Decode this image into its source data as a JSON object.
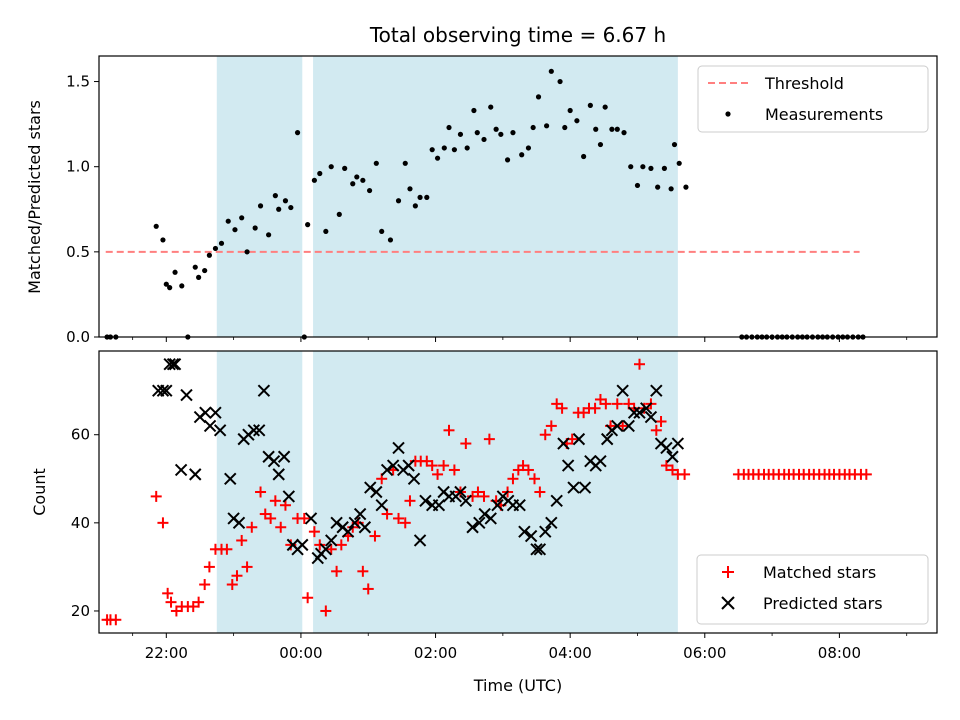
{
  "chart_data": [
    {
      "type": "scatter",
      "title": "Total observing time = 6.67 h",
      "xlabel": "",
      "ylabel": "Matched/Predicted stars",
      "x_ticks": [
        "22:00",
        "00:00",
        "02:00",
        "04:00",
        "06:00",
        "08:00"
      ],
      "xlim": [
        -3.0,
        9.45
      ],
      "ylim": [
        0,
        1.65
      ],
      "y_ticks": [
        0.0,
        0.5,
        1.0,
        1.5
      ],
      "y_tick_labels": [
        "0.0",
        "0.5",
        "1.0",
        "1.5"
      ],
      "grid": false,
      "legend": "top-right",
      "shaded_spans": [
        [
          -1.25,
          0.02
        ],
        [
          0.18,
          5.6
        ]
      ],
      "shade_color": "#add8e6",
      "threshold": {
        "name": "Threshold",
        "y": 0.5,
        "x_range": [
          -2.9,
          8.3
        ],
        "color": "#ff7f7f"
      },
      "series": [
        {
          "name": "Measurements",
          "color": "#000000",
          "x": [
            -2.88,
            -2.83,
            -2.75,
            -2.15,
            -2.05,
            -2.0,
            -1.95,
            -1.87,
            -1.77,
            -1.68,
            -1.57,
            -1.52,
            -1.43,
            -1.36,
            -1.27,
            -1.18,
            -1.08,
            -0.98,
            -0.88,
            -0.8,
            -0.68,
            -0.6,
            -0.48,
            -0.38,
            -0.33,
            -0.23,
            -0.15,
            -0.05,
            0.05,
            0.1,
            0.2,
            0.28,
            0.37,
            0.45,
            0.57,
            0.65,
            0.77,
            0.83,
            0.92,
            1.02,
            1.12,
            1.2,
            1.33,
            1.45,
            1.55,
            1.62,
            1.7,
            1.77,
            1.87,
            1.95,
            2.03,
            2.13,
            2.2,
            2.28,
            2.37,
            2.47,
            2.57,
            2.62,
            2.72,
            2.82,
            2.9,
            2.97,
            3.07,
            3.15,
            3.28,
            3.38,
            3.45,
            3.53,
            3.65,
            3.72,
            3.85,
            3.92,
            4.0,
            4.1,
            4.2,
            4.3,
            4.38,
            4.45,
            4.52,
            4.62,
            4.7,
            4.8,
            4.9,
            5.0,
            5.08,
            5.2,
            5.3,
            5.4,
            5.5,
            5.55,
            5.62,
            5.72,
            6.55,
            6.62,
            6.7,
            6.78,
            6.85,
            6.92,
            7.0,
            7.08,
            7.15,
            7.22,
            7.3,
            7.38,
            7.45,
            7.52,
            7.6,
            7.68,
            7.75,
            7.82,
            7.9,
            7.98,
            8.05,
            8.12,
            8.2,
            8.28,
            8.35
          ],
          "y": [
            0.0,
            0.0,
            0.0,
            0.65,
            0.57,
            0.31,
            0.29,
            0.38,
            0.3,
            0.0,
            0.41,
            0.35,
            0.39,
            0.48,
            0.52,
            0.55,
            0.68,
            0.63,
            0.7,
            0.5,
            0.64,
            0.77,
            0.6,
            0.83,
            0.75,
            0.8,
            0.76,
            1.2,
            0.0,
            0.66,
            0.92,
            0.96,
            0.62,
            1.0,
            0.72,
            0.99,
            0.9,
            0.94,
            0.92,
            0.86,
            1.02,
            0.62,
            0.57,
            0.8,
            1.02,
            0.87,
            0.77,
            0.82,
            0.82,
            1.1,
            1.05,
            1.11,
            1.23,
            1.1,
            1.19,
            1.11,
            1.33,
            1.2,
            1.16,
            1.35,
            1.22,
            1.19,
            1.04,
            1.2,
            1.07,
            1.11,
            1.23,
            1.41,
            1.24,
            1.56,
            1.5,
            1.23,
            1.33,
            1.27,
            1.06,
            1.36,
            1.22,
            1.13,
            1.35,
            1.22,
            1.22,
            1.2,
            1.0,
            0.89,
            1.0,
            0.99,
            0.88,
            0.99,
            0.87,
            1.13,
            1.02,
            0.88,
            0.0,
            0.0,
            0.0,
            0.0,
            0.0,
            0.0,
            0.0,
            0.0,
            0.0,
            0.0,
            0.0,
            0.0,
            0.0,
            0.0,
            0.0,
            0.0,
            0.0,
            0.0,
            0.0,
            0.0,
            0.0,
            0.0,
            0.0,
            0.0,
            0.0
          ]
        }
      ]
    },
    {
      "type": "scatter",
      "title": "",
      "xlabel": "Time (UTC)",
      "ylabel": "Count",
      "x_ticks": [
        "22:00",
        "00:00",
        "02:00",
        "04:00",
        "06:00",
        "08:00"
      ],
      "xlim": [
        -3.0,
        9.45
      ],
      "ylim": [
        15,
        79
      ],
      "y_ticks": [
        20,
        40,
        60
      ],
      "y_tick_labels": [
        "20",
        "40",
        "60"
      ],
      "grid": false,
      "legend": "bottom-right",
      "shaded_spans": [
        [
          -1.25,
          0.02
        ],
        [
          0.18,
          5.6
        ]
      ],
      "shade_color": "#add8e6",
      "series": [
        {
          "name": "Matched stars",
          "marker": "plus",
          "color": "#ff0000",
          "x": [
            -2.88,
            -2.83,
            -2.75,
            -2.15,
            -2.05,
            -1.98,
            -1.93,
            -1.85,
            -1.77,
            -1.68,
            -1.6,
            -1.52,
            -1.43,
            -1.36,
            -1.27,
            -1.18,
            -1.1,
            -1.02,
            -0.95,
            -0.88,
            -0.8,
            -0.73,
            -0.6,
            -0.53,
            -0.45,
            -0.38,
            -0.3,
            -0.23,
            -0.15,
            -0.05,
            0.05,
            0.1,
            0.2,
            0.28,
            0.37,
            0.45,
            0.53,
            0.6,
            0.7,
            0.77,
            0.85,
            0.92,
            1.0,
            1.1,
            1.2,
            1.28,
            1.37,
            1.45,
            1.55,
            1.62,
            1.7,
            1.78,
            1.87,
            1.95,
            2.03,
            2.12,
            2.2,
            2.28,
            2.37,
            2.45,
            2.55,
            2.63,
            2.72,
            2.8,
            2.9,
            2.97,
            3.07,
            3.15,
            3.23,
            3.3,
            3.38,
            3.47,
            3.55,
            3.63,
            3.72,
            3.8,
            3.88,
            3.95,
            4.03,
            4.12,
            4.2,
            4.28,
            4.37,
            4.45,
            4.53,
            4.6,
            4.7,
            4.78,
            4.87,
            4.95,
            5.03,
            5.1,
            5.2,
            5.28,
            5.35,
            5.43,
            5.52,
            5.6,
            5.7,
            6.5,
            6.58,
            6.65,
            6.72,
            6.8,
            6.88,
            6.95,
            7.02,
            7.1,
            7.18,
            7.25,
            7.32,
            7.4,
            7.47,
            7.55,
            7.62,
            7.7,
            7.78,
            7.85,
            7.92,
            8.0,
            8.08,
            8.15,
            8.23,
            8.32,
            8.4
          ],
          "y": [
            18,
            18,
            18,
            46,
            40,
            24,
            22,
            20,
            21,
            21,
            21,
            22,
            26,
            30,
            34,
            34,
            34,
            26,
            28,
            36,
            30,
            39,
            47,
            42,
            41,
            45,
            39,
            44,
            35,
            41,
            41,
            23,
            38,
            35,
            20,
            34,
            29,
            35,
            37,
            39,
            40,
            29,
            25,
            37,
            50,
            42,
            52,
            41,
            40,
            45,
            54,
            54,
            54,
            53,
            51,
            53,
            61,
            52,
            47,
            58,
            46,
            47,
            46,
            59,
            45,
            44,
            47,
            50,
            52,
            53,
            52,
            50,
            47,
            60,
            62,
            67,
            66,
            58,
            59,
            65,
            65,
            66,
            66,
            68,
            67,
            62,
            67,
            62,
            67,
            66,
            76,
            66,
            67,
            61,
            63,
            53,
            52,
            51,
            51,
            51,
            51,
            51,
            51,
            51,
            51,
            51,
            51,
            51,
            51,
            51,
            51,
            51,
            51,
            51,
            51,
            51,
            51,
            51,
            51,
            51,
            51,
            51,
            51,
            51,
            51
          ]
        },
        {
          "name": "Predicted stars",
          "marker": "x",
          "color": "#000000",
          "x": [
            -2.12,
            -2.05,
            -2.0,
            -1.95,
            -1.9,
            -1.87,
            -1.78,
            -1.7,
            -1.57,
            -1.5,
            -1.42,
            -1.35,
            -1.27,
            -1.2,
            -1.05,
            -1.0,
            -0.92,
            -0.85,
            -0.78,
            -0.7,
            -0.62,
            -0.55,
            -0.48,
            -0.4,
            -0.33,
            -0.25,
            -0.18,
            -0.12,
            -0.05,
            0.02,
            0.15,
            0.25,
            0.3,
            0.37,
            0.45,
            0.53,
            0.62,
            0.7,
            0.8,
            0.88,
            0.95,
            1.03,
            1.12,
            1.2,
            1.28,
            1.37,
            1.45,
            1.52,
            1.6,
            1.68,
            1.77,
            1.85,
            1.95,
            2.05,
            2.12,
            2.2,
            2.3,
            2.37,
            2.45,
            2.55,
            2.65,
            2.73,
            2.82,
            2.92,
            3.0,
            3.08,
            3.15,
            3.25,
            3.32,
            3.42,
            3.5,
            3.55,
            3.63,
            3.72,
            3.8,
            3.9,
            3.97,
            4.05,
            4.13,
            4.22,
            4.3,
            4.38,
            4.45,
            4.55,
            4.62,
            4.7,
            4.78,
            4.87,
            4.95,
            5.03,
            5.13,
            5.2,
            5.28,
            5.35,
            5.43,
            5.52,
            5.6
          ],
          "y": [
            70,
            70,
            70,
            76,
            76,
            76,
            52,
            69,
            51,
            64,
            65,
            62,
            65,
            61,
            50,
            41,
            40,
            59,
            60,
            61,
            61,
            70,
            55,
            54,
            51,
            55,
            46,
            35,
            34,
            35,
            41,
            32,
            33,
            34,
            36,
            40,
            39,
            38,
            40,
            42,
            39,
            48,
            47,
            44,
            52,
            53,
            57,
            52,
            53,
            50,
            36,
            45,
            44,
            44,
            47,
            46,
            46,
            47,
            45,
            39,
            40,
            42,
            41,
            44,
            46,
            45,
            44,
            44,
            38,
            37,
            34,
            34,
            38,
            40,
            45,
            58,
            53,
            48,
            59,
            48,
            54,
            53,
            54,
            59,
            61,
            62,
            70,
            62,
            65,
            65,
            66,
            64,
            70,
            58,
            57,
            55,
            58
          ]
        }
      ]
    }
  ]
}
